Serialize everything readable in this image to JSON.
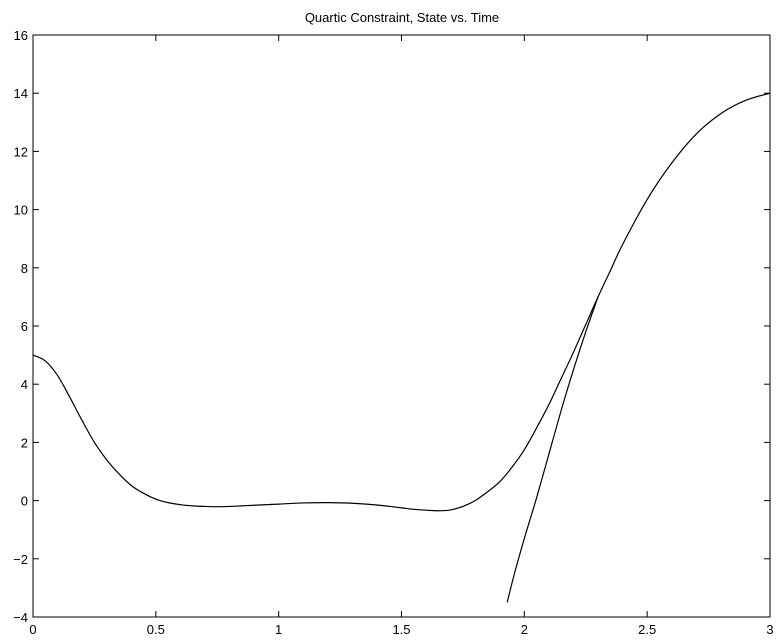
{
  "chart_data": {
    "type": "line",
    "title": "Quartic Constraint, State vs. Time",
    "xlabel": "",
    "ylabel": "",
    "xlim": [
      0,
      3
    ],
    "ylim": [
      -4,
      16
    ],
    "grid": false,
    "line_color": "#000000",
    "x_ticks": [
      0,
      0.5,
      1,
      1.5,
      2,
      2.5,
      3
    ],
    "x_tick_labels": [
      "0",
      "0.5",
      "1",
      "1.5",
      "2",
      "2.5",
      "3"
    ],
    "y_ticks": [
      -4,
      -2,
      0,
      2,
      4,
      6,
      8,
      10,
      12,
      14,
      16
    ],
    "y_tick_labels": [
      "−4",
      "−2",
      "0",
      "2",
      "4",
      "6",
      "8",
      "10",
      "12",
      "14",
      "16"
    ],
    "series": [
      {
        "x": [
          0,
          0.05,
          0.1,
          0.15,
          0.2,
          0.25,
          0.3,
          0.35,
          0.4,
          0.45,
          0.5,
          0.55,
          0.6,
          0.65,
          0.7,
          0.75,
          0.8,
          0.85,
          0.9,
          1.0,
          1.1,
          1.2,
          1.3,
          1.4,
          1.5,
          1.55,
          1.6,
          1.65,
          1.7,
          1.75,
          1.8,
          1.85,
          1.9,
          1.95,
          2.0,
          2.05,
          2.1,
          2.15,
          2.2,
          2.25,
          2.3,
          2.35,
          2.4,
          2.5,
          2.6,
          2.7,
          2.8,
          2.9,
          3.0
        ],
        "values": [
          5.0,
          4.8,
          4.3,
          3.55,
          2.75,
          2.0,
          1.4,
          0.92,
          0.52,
          0.25,
          0.05,
          -0.07,
          -0.14,
          -0.18,
          -0.2,
          -0.21,
          -0.2,
          -0.18,
          -0.16,
          -0.12,
          -0.08,
          -0.07,
          -0.09,
          -0.15,
          -0.25,
          -0.3,
          -0.33,
          -0.35,
          -0.32,
          -0.2,
          0.0,
          0.3,
          0.65,
          1.15,
          1.75,
          2.5,
          3.3,
          4.2,
          5.1,
          6.05,
          7.0,
          7.9,
          8.8,
          10.35,
          11.6,
          12.6,
          13.3,
          13.75,
          14.0
        ]
      },
      {
        "x": [
          1.93,
          1.96,
          2.0,
          2.05,
          2.1,
          2.15,
          2.2,
          2.25,
          2.3
        ],
        "values": [
          -3.5,
          -2.5,
          -1.3,
          0.1,
          1.6,
          3.1,
          4.5,
          5.8,
          7.0
        ]
      }
    ]
  }
}
